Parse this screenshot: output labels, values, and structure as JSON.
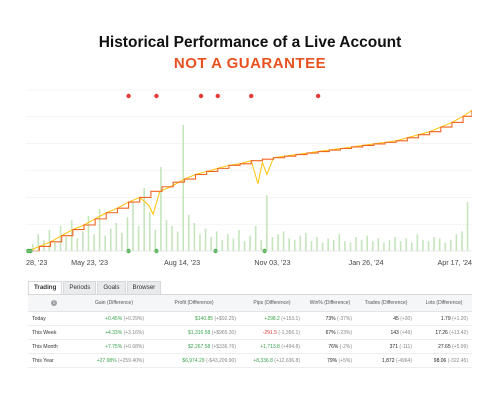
{
  "header": {
    "title": "Historical Performance of a Live Account",
    "subtitle": "NOT A GUARANTEE"
  },
  "colors": {
    "balance_line": "#f26522",
    "equity_line": "#ffc107",
    "volume_bars": "#c5e5bc",
    "deposit_marker": "#4caf50",
    "withdrawal_marker": "#e53935",
    "positive": "#3aa34c",
    "negative": "#e53935"
  },
  "chart_data": {
    "type": "line",
    "x_ticks": [
      "28, '23",
      "May 23, '23",
      "Aug 14, '23",
      "Nov 03, '23",
      "Jan 26, '24",
      "Apr 17, '24"
    ],
    "x_tick_days": [
      0,
      55,
      138,
      219,
      303,
      385
    ],
    "x_range": [
      -2,
      398
    ],
    "y_range": [
      0,
      100
    ],
    "grid": true,
    "series": [
      {
        "kind": "balance",
        "x": [
          0,
          10,
          20,
          30,
          40,
          50,
          60,
          70,
          80,
          90,
          100,
          110,
          120,
          130,
          140,
          150,
          160,
          170,
          180,
          190,
          200,
          210,
          220,
          230,
          240,
          250,
          260,
          270,
          280,
          290,
          300,
          310,
          320,
          330,
          340,
          350,
          360,
          370,
          380,
          390,
          398
        ],
        "y": [
          0,
          3,
          6,
          10,
          14,
          17,
          21,
          25,
          28,
          32,
          35,
          39,
          42,
          45,
          47,
          50,
          52,
          54,
          56,
          57,
          59,
          60,
          61,
          62,
          63,
          64,
          65,
          66,
          67,
          68,
          69,
          70,
          71,
          72,
          74,
          76,
          78,
          81,
          84,
          88,
          92
        ]
      },
      {
        "kind": "equity",
        "x": [
          0,
          10,
          20,
          30,
          40,
          50,
          60,
          70,
          80,
          90,
          100,
          108,
          112,
          118,
          128,
          140,
          150,
          160,
          170,
          180,
          190,
          200,
          206,
          210,
          214,
          220,
          230,
          240,
          250,
          260,
          270,
          280,
          290,
          300,
          310,
          320,
          330,
          340,
          350,
          360,
          370,
          380,
          390,
          398
        ],
        "y": [
          0,
          3,
          6,
          10,
          14,
          17,
          21,
          25,
          28,
          32,
          35,
          30,
          24,
          39,
          42,
          47,
          50,
          52,
          54,
          56,
          57,
          59,
          44,
          58,
          50,
          61,
          62,
          63,
          64,
          65,
          66,
          67,
          68,
          69,
          70,
          71,
          72,
          74,
          76,
          78,
          81,
          84,
          88,
          92
        ]
      }
    ],
    "volume_bars": {
      "x": [
        4,
        9,
        14,
        19,
        24,
        29,
        34,
        39,
        44,
        49,
        54,
        59,
        64,
        69,
        74,
        79,
        84,
        89,
        94,
        99,
        104,
        109,
        114,
        119,
        124,
        129,
        134,
        139,
        144,
        149,
        154,
        159,
        164,
        169,
        174,
        179,
        184,
        189,
        194,
        199,
        204,
        209,
        214,
        219,
        224,
        229,
        234,
        239,
        244,
        249,
        254,
        259,
        264,
        269,
        274,
        279,
        284,
        289,
        294,
        299,
        304,
        309,
        314,
        319,
        324,
        329,
        334,
        339,
        344,
        349,
        354,
        359,
        364,
        369,
        374,
        379,
        384,
        389,
        394
      ],
      "y": [
        5,
        12,
        8,
        15,
        6,
        18,
        10,
        22,
        9,
        14,
        25,
        12,
        30,
        11,
        16,
        20,
        13,
        24,
        35,
        18,
        45,
        28,
        15,
        60,
        22,
        18,
        14,
        90,
        26,
        20,
        12,
        16,
        10,
        14,
        8,
        12,
        9,
        15,
        7,
        11,
        18,
        8,
        40,
        10,
        12,
        14,
        9,
        8,
        11,
        13,
        7,
        10,
        6,
        9,
        8,
        12,
        7,
        6,
        10,
        8,
        11,
        7,
        9,
        6,
        8,
        10,
        7,
        9,
        6,
        12,
        8,
        7,
        10,
        9,
        6,
        8,
        12,
        14,
        35
      ]
    },
    "withdrawals_x": [
      90,
      115,
      155,
      170,
      200,
      260
    ],
    "deposits_x": [
      0,
      2,
      90,
      115,
      168,
      212
    ]
  },
  "tabs": [
    {
      "label": "Trading",
      "active": true
    },
    {
      "label": "Periods",
      "active": false
    },
    {
      "label": "Goals",
      "active": false
    },
    {
      "label": "Browser",
      "active": false
    }
  ],
  "table": {
    "headers": [
      "Gain (Difference)",
      "Profit (Difference)",
      "Pips (Difference)",
      "Win% (Difference)",
      "Trades (Difference)",
      "Lots (Difference)"
    ],
    "rows": [
      {
        "label": "Today",
        "cells": [
          {
            "v": "+0.45%",
            "d": "(+0.29%)",
            "c": "pos"
          },
          {
            "v": "$140.85",
            "d": "(+$92.25)",
            "c": "pos"
          },
          {
            "v": "+298.2",
            "d": "(+153.1)",
            "c": "pos"
          },
          {
            "v": "73%",
            "d": "(-37%)",
            "c": "neu"
          },
          {
            "v": "45",
            "d": "(+30)",
            "c": "neu"
          },
          {
            "v": "1.79",
            "d": "(+1.20)",
            "c": "neu"
          }
        ]
      },
      {
        "label": "This Week",
        "cells": [
          {
            "v": "+4.33%",
            "d": "(+3.16%)",
            "c": "pos"
          },
          {
            "v": "$1,316.58",
            "d": "(+$965.30)",
            "c": "pos"
          },
          {
            "v": "-291.5",
            "d": "(-1,356.1)",
            "c": "neg"
          },
          {
            "v": "67%",
            "d": "(-23%)",
            "c": "neu"
          },
          {
            "v": "143",
            "d": "(+49)",
            "c": "neu"
          },
          {
            "v": "17.26",
            "d": "(+13.42)",
            "c": "neu"
          }
        ]
      },
      {
        "label": "This Month",
        "cells": [
          {
            "v": "+7.75%",
            "d": "(+0.68%)",
            "c": "pos"
          },
          {
            "v": "$2,267.58",
            "d": "(+$336.76)",
            "c": "pos"
          },
          {
            "v": "+1,713.8",
            "d": "(+494.8)",
            "c": "pos"
          },
          {
            "v": "76%",
            "d": "(-2%)",
            "c": "neu"
          },
          {
            "v": "371",
            "d": "(-111)",
            "c": "neu"
          },
          {
            "v": "27.65",
            "d": "(+5.99)",
            "c": "neu"
          }
        ]
      },
      {
        "label": "This Year",
        "cells": [
          {
            "v": "+27.98%",
            "d": "(+259.40%)",
            "c": "pos"
          },
          {
            "v": "$6,974.29",
            "d": "(-$43,209.90)",
            "c": "pos"
          },
          {
            "v": "+8,336.8",
            "d": "(+12,636.8)",
            "c": "pos"
          },
          {
            "v": "79%",
            "d": "(+5%)",
            "c": "neu"
          },
          {
            "v": "1,872",
            "d": "(-4964)",
            "c": "neu"
          },
          {
            "v": "98.06",
            "d": "(-322.45)",
            "c": "neu"
          }
        ]
      }
    ]
  }
}
